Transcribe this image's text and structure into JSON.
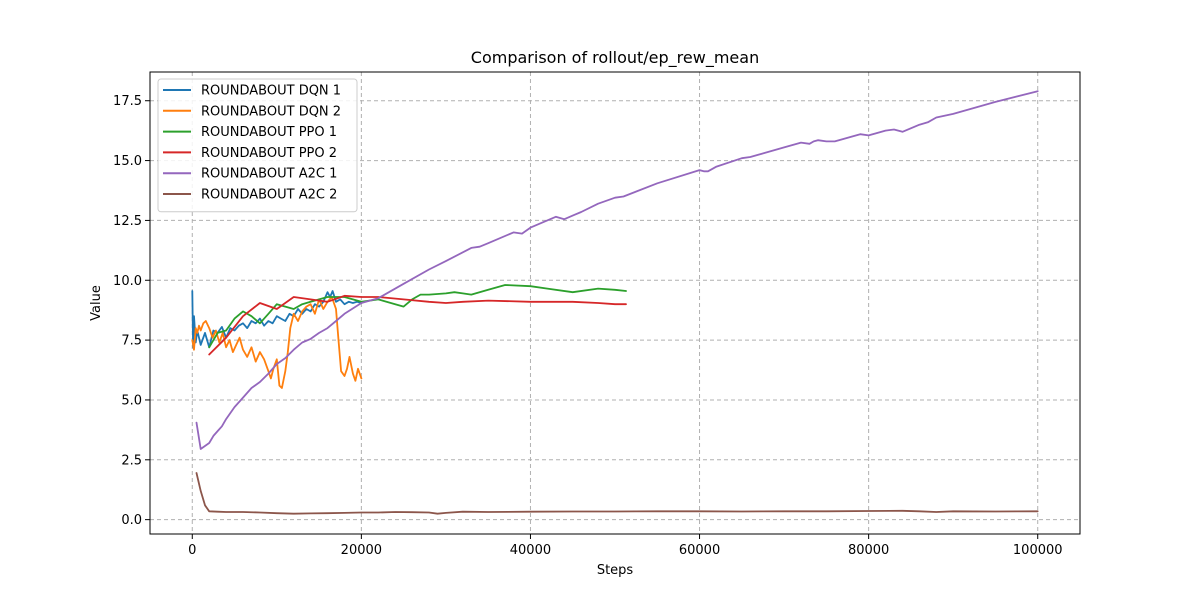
{
  "chart_data": {
    "type": "line",
    "title": "Comparison of rollout/ep_rew_mean",
    "xlabel": "Steps",
    "ylabel": "Value",
    "xlim": [
      -5000,
      105000
    ],
    "ylim": [
      -0.6,
      18.7
    ],
    "xticks": [
      0,
      20000,
      40000,
      60000,
      80000,
      100000
    ],
    "xtick_labels": [
      "0",
      "20000",
      "40000",
      "60000",
      "80000",
      "100000"
    ],
    "yticks": [
      0.0,
      2.5,
      5.0,
      7.5,
      10.0,
      12.5,
      15.0,
      17.5
    ],
    "ytick_labels": [
      "0.0",
      "2.5",
      "5.0",
      "7.5",
      "10.0",
      "12.5",
      "15.0",
      "17.5"
    ],
    "grid": true,
    "legend_position": "top-left",
    "series": [
      {
        "name": "ROUNDABOUT DQN 1",
        "color": "#1f77b4",
        "x": [
          0,
          100,
          200,
          400,
          600,
          800,
          1000,
          1500,
          2000,
          2500,
          3000,
          3500,
          4000,
          4500,
          5000,
          5500,
          6000,
          6500,
          7000,
          7500,
          8000,
          8500,
          9000,
          9500,
          10000,
          10500,
          11000,
          11500,
          12000,
          12500,
          13000,
          13500,
          14000,
          14500,
          15000,
          15500,
          16000,
          16300,
          16600,
          17000,
          17500,
          18000,
          18500,
          19000,
          19500,
          20000
        ],
        "y": [
          9.55,
          7.2,
          8.5,
          7.4,
          7.9,
          7.6,
          7.3,
          7.8,
          7.2,
          7.9,
          7.8,
          8.05,
          7.6,
          8.0,
          7.9,
          8.1,
          8.2,
          8.0,
          8.3,
          8.2,
          8.4,
          8.1,
          8.3,
          8.2,
          8.5,
          8.4,
          8.3,
          8.6,
          8.5,
          8.8,
          8.6,
          8.8,
          8.7,
          9.0,
          8.9,
          9.1,
          9.5,
          9.3,
          9.55,
          9.1,
          9.2,
          9.0,
          9.1,
          9.05,
          9.1,
          9.05
        ]
      },
      {
        "name": "ROUNDABOUT DQN 2",
        "color": "#ff7f0e",
        "x": [
          0,
          200,
          400,
          600,
          800,
          1000,
          1300,
          1600,
          2000,
          2400,
          2800,
          3200,
          3600,
          4000,
          4400,
          4800,
          5200,
          5600,
          6000,
          6500,
          7000,
          7500,
          8000,
          8500,
          9000,
          9300,
          9600,
          10000,
          10300,
          10600,
          11000,
          11300,
          11600,
          12000,
          12500,
          13000,
          13500,
          14000,
          14500,
          15000,
          15500,
          16000,
          16500,
          17000,
          17300,
          17600,
          18000,
          18300,
          18600,
          19000,
          19300,
          19600,
          20000
        ],
        "y": [
          7.5,
          7.1,
          8.0,
          7.8,
          8.1,
          7.9,
          8.2,
          8.3,
          8.0,
          7.6,
          7.9,
          7.4,
          7.8,
          7.2,
          7.5,
          7.0,
          7.3,
          7.6,
          7.1,
          6.8,
          7.2,
          6.6,
          7.0,
          6.7,
          6.2,
          5.9,
          6.3,
          6.7,
          5.6,
          5.5,
          6.2,
          7.0,
          8.0,
          8.6,
          8.3,
          8.7,
          8.9,
          9.0,
          8.6,
          9.2,
          8.8,
          9.1,
          9.3,
          8.8,
          7.5,
          6.2,
          6.0,
          6.3,
          6.8,
          6.1,
          5.8,
          6.3,
          5.9
        ]
      },
      {
        "name": "ROUNDABOUT PPO 1",
        "color": "#2ca02c",
        "x": [
          2000,
          3000,
          4000,
          5000,
          6000,
          7000,
          8000,
          9000,
          10000,
          11000,
          12000,
          13000,
          14000,
          15000,
          16000,
          17000,
          18000,
          19000,
          20000,
          22000,
          24000,
          25000,
          26000,
          27000,
          28000,
          30000,
          31000,
          32000,
          33000,
          35000,
          37000,
          40000,
          42000,
          45000,
          48000,
          50000,
          51300
        ],
        "y": [
          7.2,
          7.8,
          7.9,
          8.4,
          8.7,
          8.5,
          8.2,
          8.6,
          9.0,
          8.9,
          8.8,
          9.0,
          9.1,
          9.2,
          9.3,
          9.3,
          9.3,
          9.2,
          9.1,
          9.2,
          9.0,
          8.9,
          9.2,
          9.4,
          9.4,
          9.45,
          9.5,
          9.45,
          9.4,
          9.6,
          9.8,
          9.75,
          9.65,
          9.5,
          9.65,
          9.6,
          9.55
        ]
      },
      {
        "name": "ROUNDABOUT PPO 2",
        "color": "#d62728",
        "x": [
          2000,
          4000,
          6000,
          8000,
          10000,
          12000,
          14000,
          16000,
          18000,
          20000,
          22000,
          25000,
          28000,
          30000,
          32000,
          35000,
          40000,
          45000,
          48000,
          50000,
          51300
        ],
        "y": [
          6.9,
          7.6,
          8.5,
          9.05,
          8.8,
          9.3,
          9.2,
          9.1,
          9.35,
          9.3,
          9.3,
          9.2,
          9.1,
          9.05,
          9.1,
          9.15,
          9.1,
          9.1,
          9.05,
          9.0,
          9.0
        ]
      },
      {
        "name": "ROUNDABOUT A2C 1",
        "color": "#9467bd",
        "x": [
          500,
          1000,
          2000,
          2500,
          3000,
          3500,
          4000,
          5000,
          6000,
          7000,
          8000,
          9000,
          10000,
          11000,
          12000,
          13000,
          14000,
          15000,
          16000,
          17000,
          18000,
          20000,
          22000,
          25000,
          28000,
          30000,
          33000,
          34000,
          35000,
          38000,
          39000,
          40000,
          43000,
          44000,
          45000,
          46000,
          48000,
          50000,
          51000,
          55000,
          60000,
          60500,
          61000,
          62000,
          65000,
          66000,
          67000,
          70000,
          72000,
          73000,
          73500,
          74000,
          75000,
          76000,
          77000,
          78000,
          79000,
          80000,
          81000,
          82000,
          83000,
          84000,
          86000,
          87000,
          88000,
          90000,
          95000,
          100000
        ],
        "y": [
          4.05,
          2.95,
          3.2,
          3.5,
          3.7,
          3.9,
          4.2,
          4.7,
          5.1,
          5.5,
          5.75,
          6.1,
          6.5,
          6.75,
          7.1,
          7.4,
          7.55,
          7.8,
          8.0,
          8.3,
          8.6,
          9.05,
          9.25,
          9.85,
          10.45,
          10.8,
          11.35,
          11.4,
          11.55,
          12.0,
          11.95,
          12.2,
          12.65,
          12.55,
          12.7,
          12.85,
          13.2,
          13.45,
          13.5,
          14.05,
          14.6,
          14.55,
          14.55,
          14.75,
          15.1,
          15.15,
          15.25,
          15.55,
          15.75,
          15.7,
          15.8,
          15.85,
          15.8,
          15.8,
          15.9,
          16.0,
          16.1,
          16.05,
          16.15,
          16.25,
          16.3,
          16.2,
          16.5,
          16.6,
          16.8,
          16.95,
          17.45,
          17.9
        ]
      },
      {
        "name": "ROUNDABOUT A2C 2",
        "color": "#8c564b",
        "x": [
          500,
          1000,
          1500,
          2000,
          3000,
          4000,
          6000,
          8000,
          10000,
          12000,
          14000,
          16000,
          18000,
          20000,
          22000,
          24000,
          26000,
          28000,
          29000,
          30000,
          32000,
          35000,
          40000,
          45000,
          50000,
          55000,
          60000,
          65000,
          70000,
          75000,
          80000,
          84000,
          86000,
          88000,
          90000,
          95000,
          100000
        ],
        "y": [
          1.95,
          1.2,
          0.6,
          0.35,
          0.33,
          0.32,
          0.32,
          0.3,
          0.27,
          0.25,
          0.26,
          0.27,
          0.28,
          0.3,
          0.3,
          0.32,
          0.31,
          0.3,
          0.25,
          0.28,
          0.33,
          0.32,
          0.33,
          0.34,
          0.34,
          0.35,
          0.35,
          0.34,
          0.35,
          0.35,
          0.36,
          0.37,
          0.35,
          0.32,
          0.35,
          0.34,
          0.35
        ]
      }
    ]
  }
}
